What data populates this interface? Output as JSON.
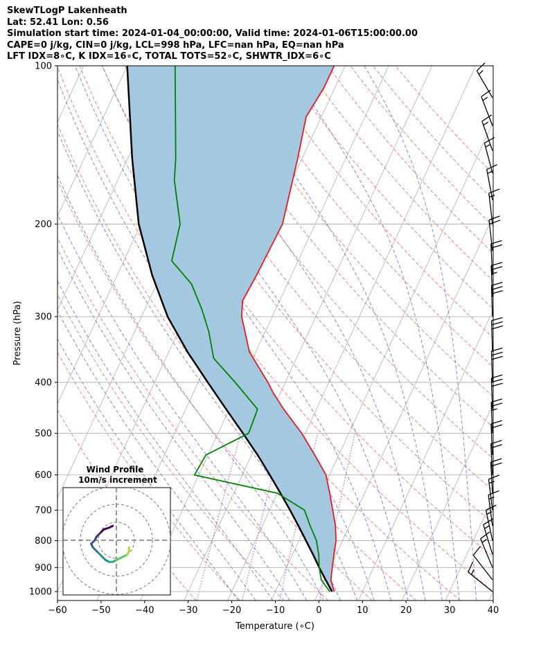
{
  "header": {
    "line1": "SkewTLogP Lakenheath",
    "line2": "Lat: 52.41   Lon: 0.56",
    "line3": "Simulation start time: 2024-01-04_00:00:00, Valid time: 2024-01-06T15:00:00.00",
    "line4": "CAPE=0 j/kg, CIN=0 j/kg, LCL=998 hPa, LFC=nan hPa, EQ=nan hPa",
    "line5": "LFT IDX=8∘C, K IDX=16∘C, TOTAL TOTS=52∘C, SHWTR_IDX=6∘C"
  },
  "inset": {
    "title_line1": "Wind Profile",
    "title_line2": "10m/s increment"
  },
  "chart_data": {
    "type": "line",
    "subtype": "skew-T log-P diagram",
    "xlabel": "Temperature (∘C)",
    "ylabel": "Pressure (hPa)",
    "xlim": [
      -60,
      40
    ],
    "ylim": [
      1040,
      100
    ],
    "y_scale": "log",
    "skew_deg_per_decade": 56,
    "x_ticks": [
      -60,
      -50,
      -40,
      -30,
      -20,
      -10,
      0,
      10,
      20,
      30,
      40
    ],
    "x_tick_labels": [
      "−60",
      "−50",
      "−40",
      "−30",
      "−20",
      "−10",
      "0",
      "10",
      "20",
      "30",
      "40"
    ],
    "y_ticks": [
      1000,
      900,
      800,
      700,
      600,
      500,
      400,
      300,
      200,
      100
    ],
    "grid": true,
    "colors": {
      "temperature": "#e41a1c",
      "dewpoint": "#008000",
      "parcel": "#000000",
      "shade": "#a5c8e1",
      "dry_adiabats": "#ff6666",
      "moist_adiabats": "#6a6af0",
      "isotherms": "#b0b0b0",
      "mixing_ratio": "#9b4fd1"
    },
    "series": [
      {
        "name": "",
        "role": "temperature",
        "points": [
          [
            1000,
            3.5
          ],
          [
            950,
            1.5
          ],
          [
            900,
            0.5
          ],
          [
            850,
            -0.5
          ],
          [
            800,
            -1.5
          ],
          [
            750,
            -3.2
          ],
          [
            700,
            -5.5
          ],
          [
            650,
            -8.0
          ],
          [
            600,
            -10.8
          ],
          [
            550,
            -15.5
          ],
          [
            500,
            -20.8
          ],
          [
            450,
            -27.5
          ],
          [
            420,
            -31.5
          ],
          [
            400,
            -34.0
          ],
          [
            350,
            -41.5
          ],
          [
            300,
            -47.0
          ],
          [
            280,
            -48.5
          ],
          [
            250,
            -48.0
          ],
          [
            200,
            -47.5
          ],
          [
            150,
            -51.0
          ],
          [
            125,
            -53.5
          ],
          [
            110,
            -52.5
          ],
          [
            100,
            -52.5
          ]
        ]
      },
      {
        "name": "",
        "role": "dewpoint",
        "points": [
          [
            1000,
            2.5
          ],
          [
            950,
            -0.7
          ],
          [
            900,
            -2.5
          ],
          [
            850,
            -4.0
          ],
          [
            800,
            -6.0
          ],
          [
            750,
            -9.0
          ],
          [
            700,
            -12.0
          ],
          [
            650,
            -20.0
          ],
          [
            600,
            -41.0
          ],
          [
            550,
            -40.5
          ],
          [
            500,
            -33.0
          ],
          [
            450,
            -33.5
          ],
          [
            400,
            -41.5
          ],
          [
            360,
            -49.0
          ],
          [
            320,
            -53.0
          ],
          [
            290,
            -57.0
          ],
          [
            260,
            -62.0
          ],
          [
            235,
            -69.0
          ],
          [
            200,
            -71.0
          ],
          [
            165,
            -77.0
          ],
          [
            150,
            -79.0
          ],
          [
            100,
            -89.0
          ]
        ]
      },
      {
        "name": "",
        "role": "parcel",
        "points": [
          [
            1000,
            3.0
          ],
          [
            950,
            0.3
          ],
          [
            900,
            -2.5
          ],
          [
            850,
            -5.3
          ],
          [
            800,
            -8.4
          ],
          [
            750,
            -11.7
          ],
          [
            700,
            -15.3
          ],
          [
            650,
            -19.3
          ],
          [
            600,
            -23.7
          ],
          [
            550,
            -28.6
          ],
          [
            500,
            -34.3
          ],
          [
            450,
            -40.7
          ],
          [
            400,
            -47.8
          ],
          [
            350,
            -55.7
          ],
          [
            300,
            -64.0
          ],
          [
            250,
            -72.0
          ],
          [
            200,
            -80.5
          ],
          [
            150,
            -89.0
          ],
          [
            100,
            -100.0
          ]
        ]
      }
    ],
    "wind_barbs": [
      {
        "p": 1000,
        "u": -10,
        "v": 8
      },
      {
        "p": 950,
        "u": -7,
        "v": 9
      },
      {
        "p": 900,
        "u": -5,
        "v": 12
      },
      {
        "p": 850,
        "u": -4,
        "v": 13
      },
      {
        "p": 800,
        "u": -3,
        "v": 14
      },
      {
        "p": 750,
        "u": -2,
        "v": 15
      },
      {
        "p": 700,
        "u": -2,
        "v": 16
      },
      {
        "p": 650,
        "u": -1,
        "v": 18
      },
      {
        "p": 600,
        "u": -1,
        "v": 19
      },
      {
        "p": 550,
        "u": -1,
        "v": 21
      },
      {
        "p": 500,
        "u": -1,
        "v": 24
      },
      {
        "p": 450,
        "u": -1,
        "v": 28
      },
      {
        "p": 400,
        "u": -1,
        "v": 30
      },
      {
        "p": 350,
        "u": -1,
        "v": 32
      },
      {
        "p": 300,
        "u": -1,
        "v": 30
      },
      {
        "p": 275,
        "u": -1,
        "v": 24
      },
      {
        "p": 250,
        "u": -1,
        "v": 20
      },
      {
        "p": 225,
        "u": -2,
        "v": 18
      },
      {
        "p": 200,
        "u": -2,
        "v": 17
      },
      {
        "p": 180,
        "u": -3,
        "v": 16
      },
      {
        "p": 160,
        "u": -4,
        "v": 15
      },
      {
        "p": 145,
        "u": -5,
        "v": 14
      },
      {
        "p": 130,
        "u": -5,
        "v": 13
      },
      {
        "p": 115,
        "u": -7,
        "v": 12
      }
    ],
    "hodograph": {
      "rings_ms": [
        10,
        20,
        30
      ],
      "points": [
        [
          -2,
          8
        ],
        [
          -4,
          7
        ],
        [
          -7,
          6
        ],
        [
          -9,
          4
        ],
        [
          -11,
          2
        ],
        [
          -12,
          0
        ],
        [
          -13,
          -1
        ],
        [
          -14,
          -2
        ],
        [
          -13,
          -4
        ],
        [
          -12,
          -5
        ],
        [
          -10,
          -7
        ],
        [
          -8,
          -9
        ],
        [
          -6,
          -11
        ],
        [
          -4,
          -12
        ],
        [
          -2,
          -12
        ],
        [
          0,
          -11
        ],
        [
          2,
          -10
        ],
        [
          4,
          -9
        ],
        [
          6,
          -8
        ],
        [
          7,
          -6
        ],
        [
          7,
          -4
        ]
      ]
    }
  }
}
